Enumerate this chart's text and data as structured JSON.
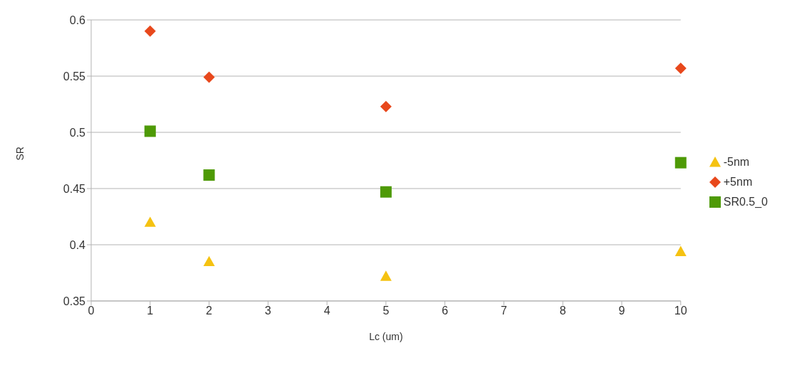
{
  "chart_data": {
    "type": "scatter",
    "xlabel": "Lc (um)",
    "ylabel": "SR",
    "x": [
      1,
      2,
      5,
      10
    ],
    "series": [
      {
        "name": "-5nm",
        "color": "#f5c211",
        "marker": "triangle",
        "values": [
          0.42,
          0.385,
          0.372,
          0.394
        ]
      },
      {
        "name": "+5nm",
        "color": "#e8481c",
        "marker": "diamond",
        "values": [
          0.59,
          0.549,
          0.523,
          0.557
        ]
      },
      {
        "name": "SR0.5_0",
        "color": "#4e9a06",
        "marker": "square",
        "values": [
          0.501,
          0.462,
          0.447,
          0.473
        ]
      }
    ],
    "xlim": [
      0,
      10
    ],
    "xticks": [
      0,
      1,
      2,
      3,
      4,
      5,
      6,
      7,
      8,
      9,
      10
    ],
    "ylim": [
      0.35,
      0.6
    ],
    "yticks": [
      0.35,
      0.4,
      0.45,
      0.5,
      0.55,
      0.6
    ],
    "grid": "y",
    "legend": "right"
  }
}
